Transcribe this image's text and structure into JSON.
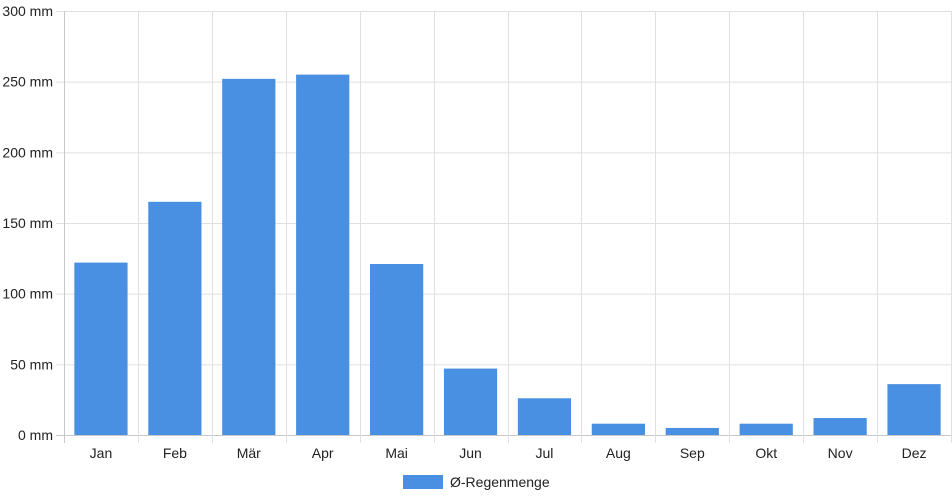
{
  "chart_data": {
    "type": "bar",
    "categories": [
      "Jan",
      "Feb",
      "Mär",
      "Apr",
      "Mai",
      "Jun",
      "Jul",
      "Aug",
      "Sep",
      "Okt",
      "Nov",
      "Dez"
    ],
    "series": [
      {
        "name": "Ø-Regenmenge",
        "values": [
          122,
          165,
          252,
          255,
          121,
          47,
          26,
          8,
          5,
          8,
          12,
          36
        ],
        "color": "#4a90e2"
      }
    ],
    "ylim": [
      0,
      300
    ],
    "yticks": [
      0,
      50,
      100,
      150,
      200,
      250,
      300
    ],
    "y_tick_labels": [
      "0 mm",
      "50 mm",
      "100 mm",
      "150 mm",
      "200 mm",
      "250 mm",
      "300 mm"
    ],
    "grid": true,
    "legend_position": "bottom-center",
    "colors": {
      "grid": "#e0e0e0",
      "axis": "#c8c8c8",
      "text": "#222222"
    }
  }
}
